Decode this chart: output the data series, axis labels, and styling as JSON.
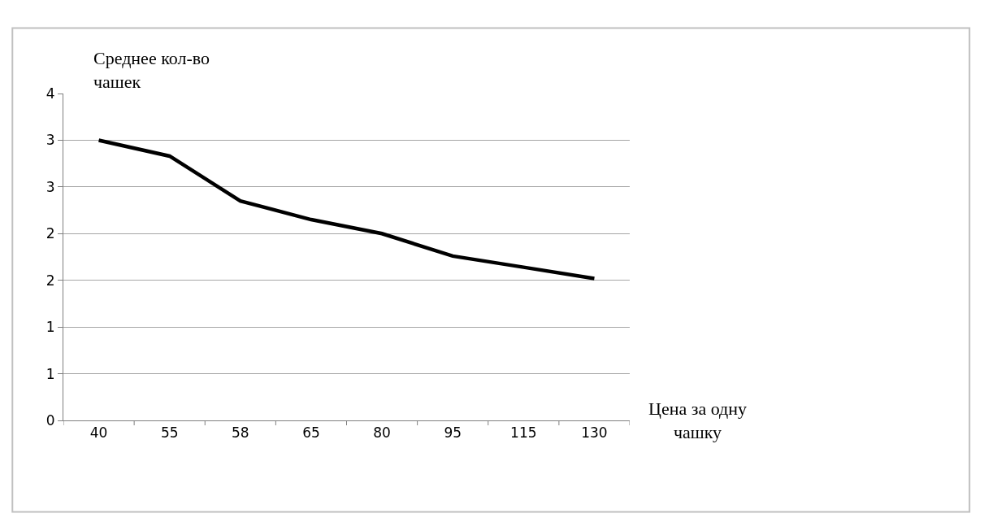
{
  "chart_data": {
    "type": "line",
    "ylabel": "Среднее кол-во чашек",
    "xlabel": "Цена за одну чашку",
    "categories": [
      "40",
      "55",
      "58",
      "65",
      "80",
      "95",
      "115",
      "130"
    ],
    "series": [
      {
        "color": "#000000",
        "values": [
          3.0,
          2.83,
          2.35,
          2.15,
          2.0,
          1.76,
          1.64,
          1.52
        ]
      }
    ],
    "ylim": [
      0,
      3.5
    ],
    "yticks": [
      0,
      {
        "value": 0.5,
        "label": "1"
      },
      1,
      {
        "value": 1.5,
        "label": "2"
      },
      2,
      {
        "value": 2.5,
        "label": "3"
      },
      3,
      {
        "value": 3.5,
        "label": "4"
      }
    ],
    "grid": "y",
    "marker": "none",
    "line_style": "solid"
  }
}
